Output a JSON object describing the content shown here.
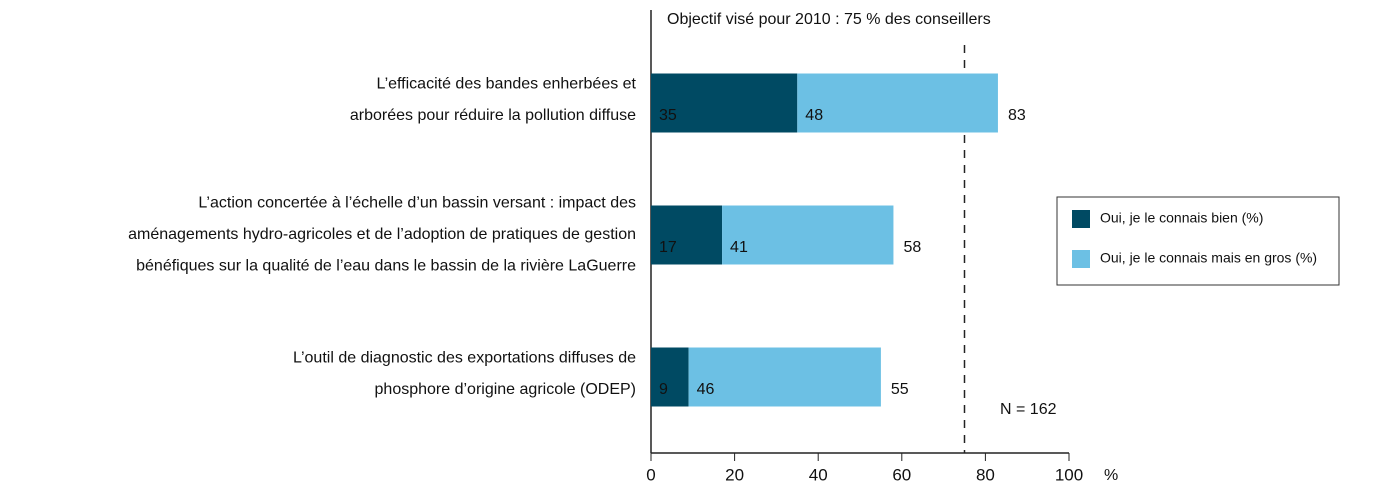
{
  "chart_data": {
    "type": "stacked-bar-horizontal",
    "annotation": "Objectif visé pour 2010 : 75 % des conseillers",
    "target": 75,
    "note": "N = 162",
    "x_unit": "%",
    "categories": [
      "L’efficacité des bandes enherbées et\narborées pour réduire la pollution diffuse",
      "L’action concertée à l’échelle d’un bassin versant : impact des\naménagements hydro-agricoles et de l’adoption de pratiques de gestion\nbénéfiques sur la qualité de l’eau dans le bassin de la rivière LaGuerre",
      "L’outil de diagnostic des exportations diffuses de\nphosphore d’origine agricole (ODEP)"
    ],
    "series": [
      {
        "name": "Oui, je le connais bien (%)",
        "color": "#004a63",
        "values": [
          35,
          17,
          9
        ]
      },
      {
        "name": "Oui, je le connais mais en gros (%)",
        "color": "#6cc0e4",
        "values": [
          48,
          41,
          46
        ]
      }
    ],
    "totals": [
      83,
      58,
      55
    ],
    "xlim": [
      0,
      100
    ],
    "xticks": [
      0,
      20,
      40,
      60,
      80,
      100
    ],
    "legend": "right"
  }
}
